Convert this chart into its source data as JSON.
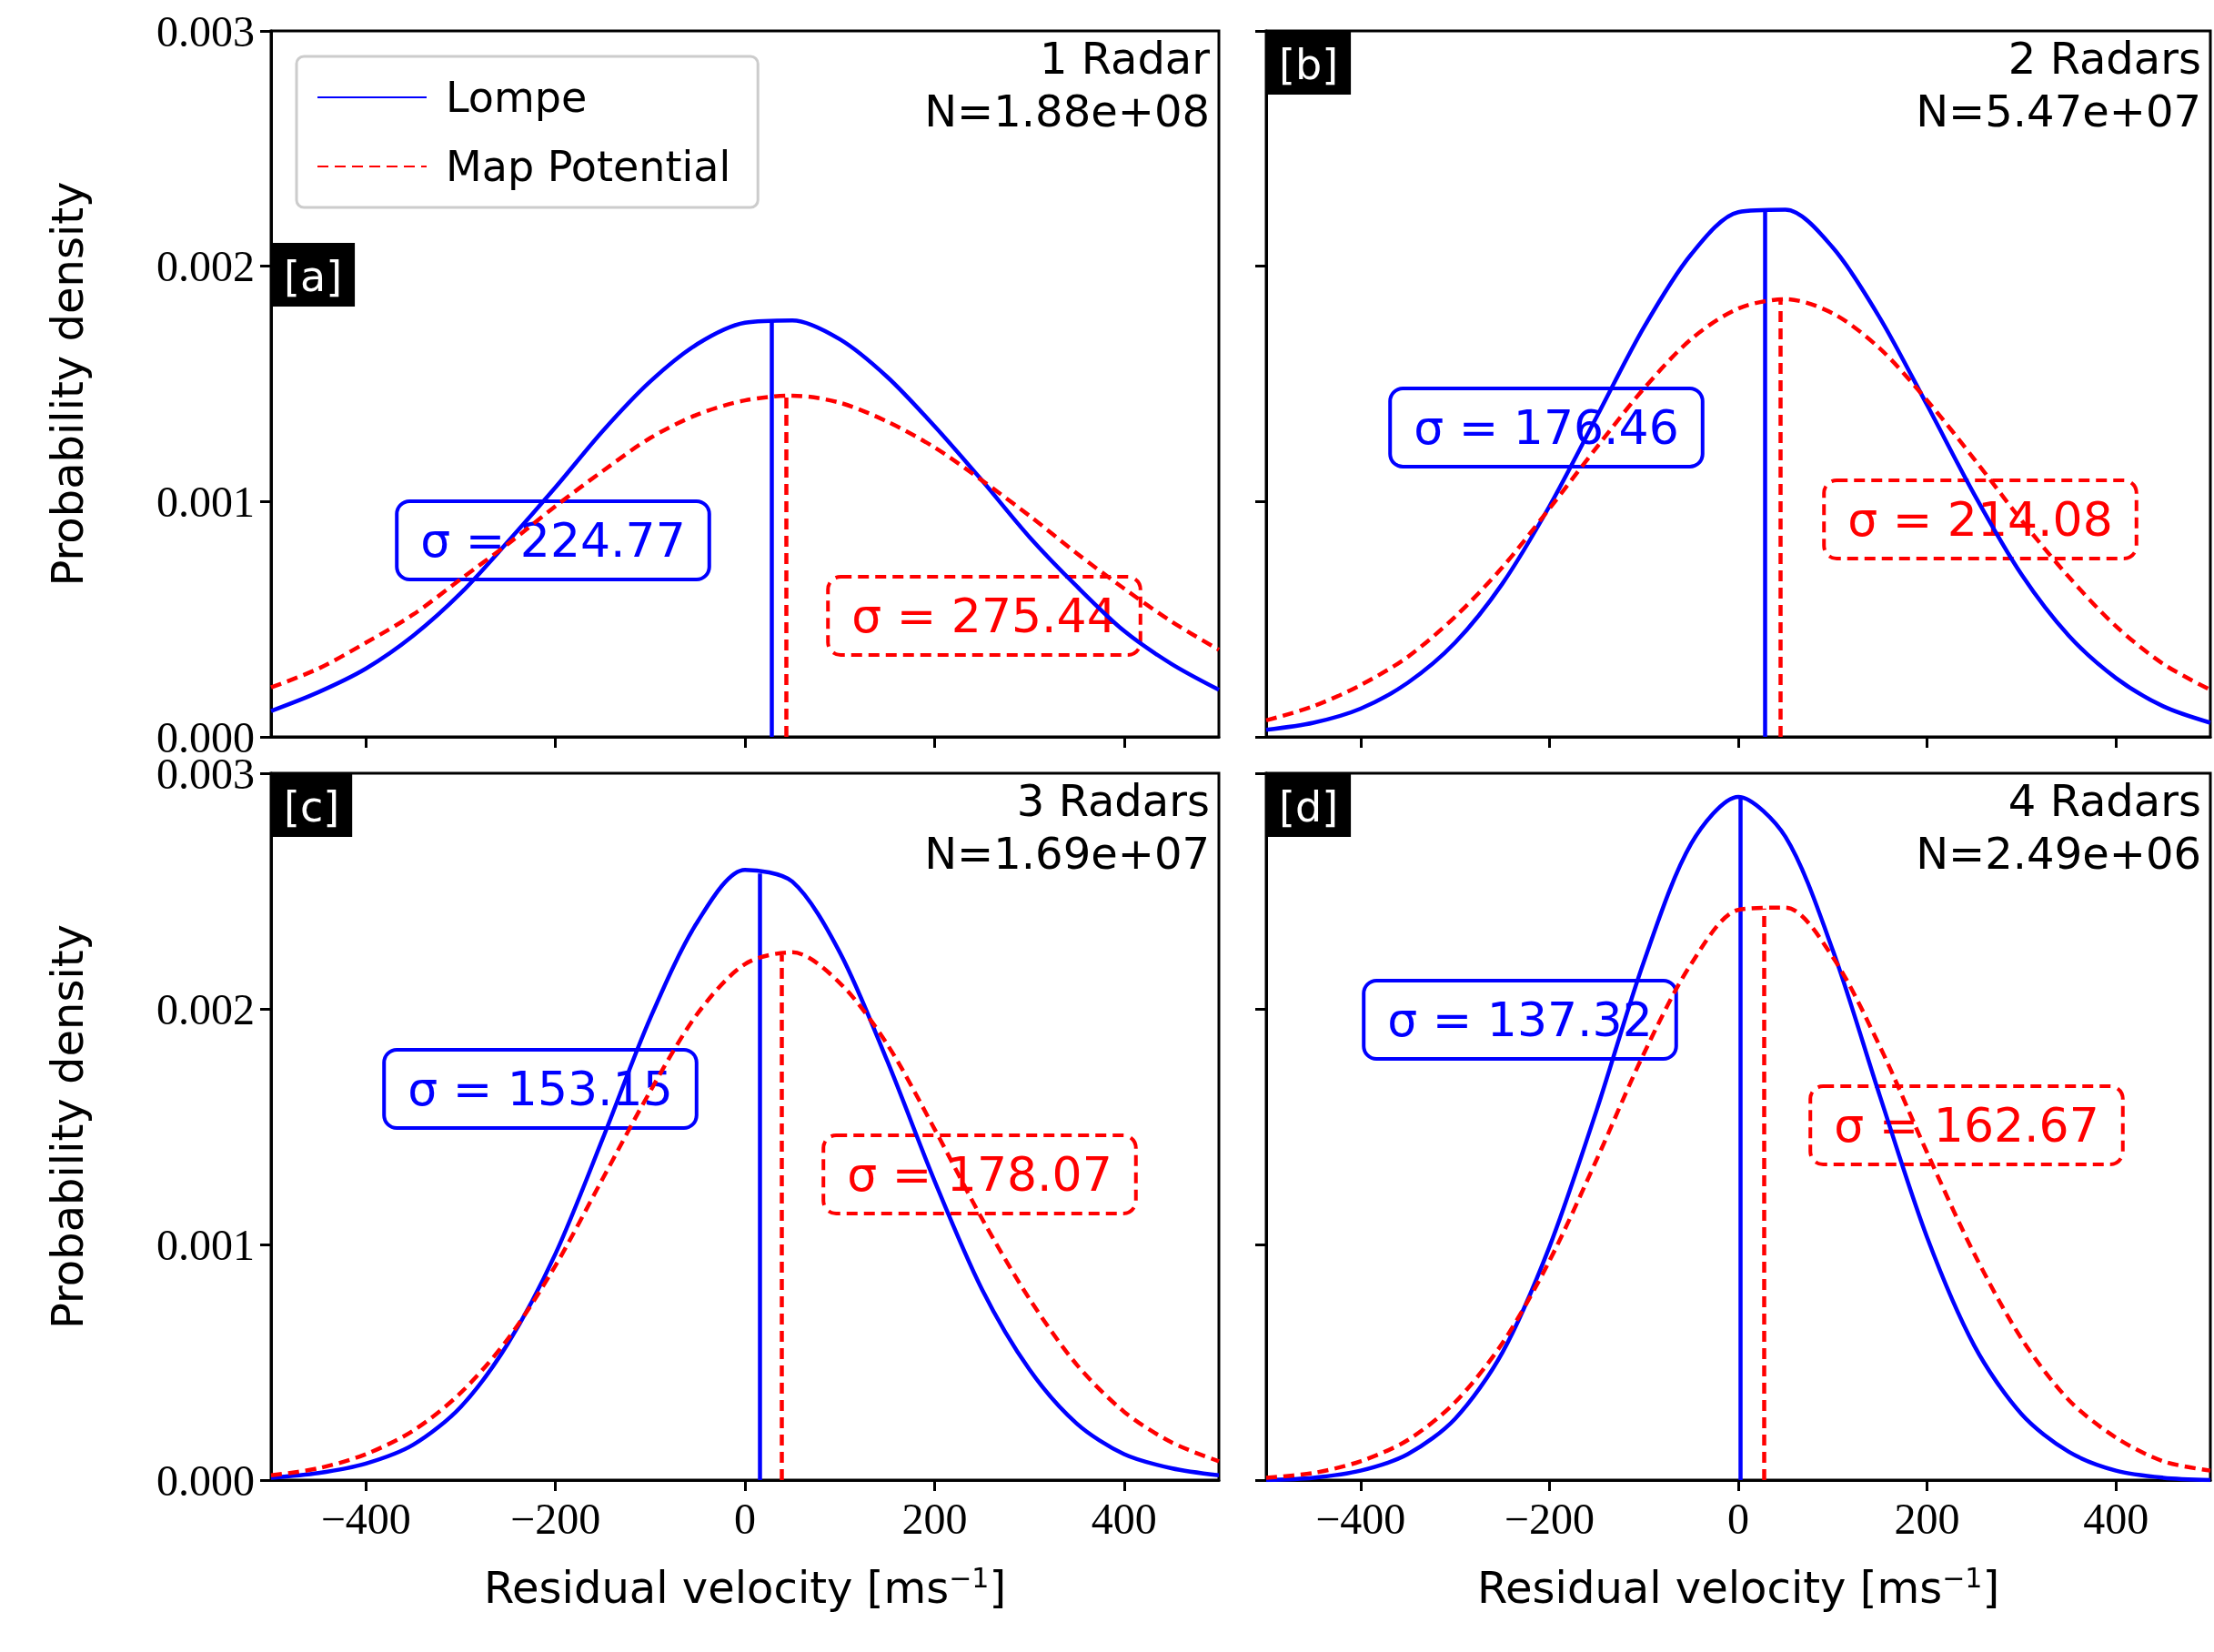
{
  "chart_data": [
    {
      "type": "line",
      "x": [
        -500,
        -450,
        -400,
        -350,
        -300,
        -250,
        -200,
        -150,
        -100,
        -50,
        0,
        50,
        100,
        150,
        200,
        250,
        300,
        350,
        400,
        450,
        500
      ],
      "series": [
        {
          "name": "Lompe",
          "color": "#0000ff",
          "line_style": "solid",
          "values": [
            0.00011,
            0.00019,
            0.00029,
            0.00043,
            0.00061,
            0.00083,
            0.00106,
            0.0013,
            0.00151,
            0.00167,
            0.00176,
            0.00177,
            0.00169,
            0.00153,
            0.00132,
            0.00109,
            0.00085,
            0.00064,
            0.00045,
            0.00031,
            0.0002
          ]
        },
        {
          "name": "Map Potential",
          "color": "#ff0000",
          "line_style": "dashed",
          "values": [
            0.00021,
            0.00029,
            0.0004,
            0.00052,
            0.00067,
            0.00082,
            0.00098,
            0.00113,
            0.00127,
            0.00137,
            0.00143,
            0.00145,
            0.00142,
            0.00134,
            0.00123,
            0.00109,
            0.00094,
            0.00078,
            0.00063,
            0.00049,
            0.00037
          ]
        }
      ],
      "xlim": [
        -500,
        500
      ],
      "xticks": [
        {
          "value": -400,
          "label": null
        },
        {
          "value": -200,
          "label": null
        },
        {
          "value": 0,
          "label": null
        },
        {
          "value": 200,
          "label": null
        },
        {
          "value": 400,
          "label": null
        }
      ],
      "ylim": [
        0,
        0.003
      ],
      "yticks": [
        {
          "value": 0,
          "label": "0.000"
        },
        {
          "value": 0.001,
          "label": "0.001"
        },
        {
          "value": 0.002,
          "label": "0.002"
        },
        {
          "value": 0.003,
          "label": "0.003"
        }
      ],
      "ylabel": "Probability density",
      "legend": "top left",
      "marker": "none",
      "tick_labels": "y",
      "ref_lines": [
        {
          "axis": "x",
          "value": 28,
          "color": "#0000ff",
          "line_style": "solid"
        },
        {
          "axis": "x",
          "value": 43,
          "color": "#ff0000",
          "line_style": "dashed"
        }
      ],
      "annotations": [
        "[a]",
        "1 Radar",
        "N=1.88e+08",
        "σ = 224.77",
        "σ = 275.44"
      ]
    },
    {
      "type": "line",
      "x": [
        -500,
        -450,
        -400,
        -350,
        -300,
        -250,
        -200,
        -150,
        -100,
        -50,
        0,
        50,
        100,
        150,
        200,
        250,
        300,
        350,
        400,
        450,
        500
      ],
      "series": [
        {
          "color": "#0000ff",
          "line_style": "solid",
          "values": [
            3e-05,
            6e-05,
            0.00012,
            0.00023,
            0.0004,
            0.00065,
            0.00098,
            0.00136,
            0.00174,
            0.00205,
            0.00223,
            0.00224,
            0.00208,
            0.00178,
            0.00141,
            0.00103,
            0.00069,
            0.00043,
            0.00025,
            0.00013,
            6e-05
          ]
        },
        {
          "color": "#ff0000",
          "line_style": "dashed",
          "values": [
            7e-05,
            0.00013,
            0.00022,
            0.00034,
            0.00051,
            0.00072,
            0.00097,
            0.00123,
            0.00148,
            0.00169,
            0.00182,
            0.00186,
            0.0018,
            0.00165,
            0.00143,
            0.00118,
            0.00092,
            0.00068,
            0.00047,
            0.00031,
            0.0002
          ]
        }
      ],
      "xlim": [
        -500,
        500
      ],
      "xticks": [
        {
          "value": -400,
          "label": null
        },
        {
          "value": -200,
          "label": null
        },
        {
          "value": 0,
          "label": null
        },
        {
          "value": 200,
          "label": null
        },
        {
          "value": 400,
          "label": null
        }
      ],
      "ylim": [
        0,
        0.003
      ],
      "yticks": [
        {
          "value": 0,
          "label": null
        },
        {
          "value": 0.001,
          "label": null
        },
        {
          "value": 0.002,
          "label": null
        },
        {
          "value": 0.003,
          "label": null
        }
      ],
      "marker": "none",
      "tick_labels": false,
      "ref_lines": [
        {
          "axis": "x",
          "value": 28,
          "color": "#0000ff",
          "line_style": "solid"
        },
        {
          "axis": "x",
          "value": 45,
          "color": "#ff0000",
          "line_style": "dashed"
        }
      ],
      "annotations": [
        "[b]",
        "2 Radars",
        "N=5.47e+07",
        "σ = 176.46",
        "σ = 214.08"
      ]
    },
    {
      "type": "line",
      "x": [
        -500,
        -450,
        -400,
        -350,
        -300,
        -250,
        -200,
        -150,
        -100,
        -50,
        0,
        50,
        100,
        150,
        200,
        250,
        300,
        350,
        400,
        450,
        500
      ],
      "series": [
        {
          "color": "#0000ff",
          "line_style": "solid",
          "values": [
            1e-05,
            3e-05,
            7e-05,
            0.00015,
            0.00031,
            0.00058,
            0.00096,
            0.00145,
            0.00196,
            0.00237,
            0.00259,
            0.00254,
            0.00224,
            0.00178,
            0.00127,
            0.00081,
            0.00047,
            0.00024,
            0.00011,
            5e-05,
            2e-05
          ]
        },
        {
          "color": "#ff0000",
          "line_style": "dashed",
          "values": [
            2e-05,
            5e-05,
            0.00011,
            0.00021,
            0.00037,
            0.0006,
            0.00091,
            0.00128,
            0.00165,
            0.00198,
            0.00219,
            0.00224,
            0.00211,
            0.00185,
            0.00149,
            0.00111,
            0.00077,
            0.00049,
            0.00029,
            0.00016,
            8e-05
          ]
        }
      ],
      "xlim": [
        -500,
        500
      ],
      "xticks": [
        {
          "value": -400,
          "label": "−400"
        },
        {
          "value": -200,
          "label": "−200"
        },
        0,
        200,
        400
      ],
      "ylim": [
        0,
        0.003
      ],
      "yticks": [
        {
          "value": 0,
          "label": "0.000"
        },
        {
          "value": 0.001,
          "label": "0.001"
        },
        {
          "value": 0.002,
          "label": "0.002"
        },
        {
          "value": 0.003,
          "label": "0.003"
        }
      ],
      "xlabel": "Residual velocity [ms$^{−1}$]",
      "ylabel": "Probability density",
      "marker": "none",
      "ref_lines": [
        {
          "axis": "x",
          "value": 16,
          "color": "#0000ff",
          "line_style": "solid"
        },
        {
          "axis": "x",
          "value": 39,
          "color": "#ff0000",
          "line_style": "dashed"
        }
      ],
      "annotations": [
        "[c]",
        "3 Radars",
        "N=1.69e+07",
        "σ = 153.15",
        "σ = 178.07"
      ]
    },
    {
      "type": "line",
      "x": [
        -500,
        -450,
        -400,
        -350,
        -300,
        -250,
        -200,
        -150,
        -100,
        -50,
        0,
        50,
        100,
        150,
        200,
        250,
        300,
        350,
        400,
        450,
        500
      ],
      "series": [
        {
          "color": "#0000ff",
          "line_style": "solid",
          "values": [
            0,
            1e-05,
            4e-05,
            0.00011,
            0.00026,
            0.00054,
            0.00099,
            0.00157,
            0.0022,
            0.0027,
            0.0029,
            0.00273,
            0.00225,
            0.00163,
            0.00103,
            0.00057,
            0.00028,
            0.00012,
            4e-05,
            1e-05,
            0
          ]
        },
        {
          "color": "#ff0000",
          "line_style": "dashed",
          "values": [
            1e-05,
            3e-05,
            8e-05,
            0.00017,
            0.00033,
            0.00058,
            0.00093,
            0.00136,
            0.00181,
            0.00219,
            0.00242,
            0.00243,
            0.00222,
            0.00184,
            0.00139,
            0.00096,
            0.0006,
            0.00034,
            0.00018,
            8e-05,
            4e-05
          ]
        }
      ],
      "xlim": [
        -500,
        500
      ],
      "xticks": [
        {
          "value": -400,
          "label": "−400"
        },
        {
          "value": -200,
          "label": "−200"
        },
        0,
        200,
        400
      ],
      "ylim": [
        0,
        0.003
      ],
      "yticks": [
        {
          "value": 0,
          "label": null
        },
        {
          "value": 0.001,
          "label": null
        },
        {
          "value": 0.002,
          "label": null
        },
        {
          "value": 0.003,
          "label": null
        }
      ],
      "xlabel": "Residual velocity [ms$^{−1}$]",
      "marker": "none",
      "tick_labels": "x",
      "ref_lines": [
        {
          "axis": "x",
          "value": 2,
          "color": "#0000ff",
          "line_style": "solid"
        },
        {
          "axis": "x",
          "value": 27,
          "color": "#ff0000",
          "line_style": "dashed"
        }
      ],
      "annotations": [
        "[d]",
        "4 Radars",
        "N=2.49e+06",
        "σ = 137.32",
        "σ = 162.67"
      ]
    }
  ]
}
